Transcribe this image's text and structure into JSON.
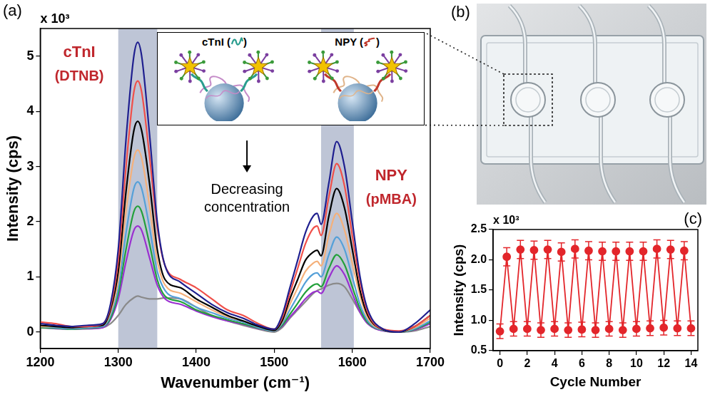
{
  "photo": {
    "panel": "(b)"
  },
  "chart_data": [
    {
      "panel": "(a)",
      "type": "line",
      "marker": "none",
      "line_style": "solid",
      "grid": false,
      "x": [
        1200,
        1220,
        1240,
        1260,
        1280,
        1290,
        1300,
        1310,
        1320,
        1325,
        1330,
        1340,
        1350,
        1360,
        1380,
        1400,
        1420,
        1440,
        1460,
        1480,
        1500,
        1510,
        1520,
        1530,
        1540,
        1550,
        1555,
        1560,
        1570,
        1580,
        1590,
        1600,
        1610,
        1620,
        1640,
        1660,
        1680,
        1700
      ],
      "series": [
        {
          "color": "#1f1f8f",
          "values": [
            0.15,
            0.12,
            0.1,
            0.12,
            0.15,
            0.5,
            1.5,
            3.5,
            5.0,
            5.25,
            5.0,
            3.6,
            2.0,
            1.2,
            0.9,
            0.7,
            0.5,
            0.35,
            0.25,
            0.12,
            0.05,
            0.3,
            0.8,
            1.3,
            1.8,
            2.1,
            2.15,
            1.95,
            2.7,
            3.45,
            3.0,
            2.0,
            1.0,
            0.4,
            0.05,
            0.0,
            0.15,
            0.4
          ]
        },
        {
          "color": "#f0504a",
          "values": [
            0.18,
            0.15,
            0.1,
            0.1,
            0.15,
            0.45,
            1.3,
            3.0,
            4.35,
            4.55,
            4.35,
            3.2,
            1.9,
            1.2,
            0.95,
            0.8,
            0.6,
            0.4,
            0.3,
            0.15,
            0.05,
            0.25,
            0.7,
            1.15,
            1.6,
            1.88,
            1.92,
            1.75,
            2.45,
            3.05,
            2.65,
            1.75,
            0.9,
            0.35,
            0.05,
            0.02,
            0.1,
            0.3
          ]
        },
        {
          "color": "#000000",
          "values": [
            0.12,
            0.1,
            0.08,
            0.1,
            0.12,
            0.4,
            1.1,
            2.55,
            3.65,
            3.82,
            3.65,
            2.7,
            1.5,
            0.95,
            0.8,
            0.6,
            0.45,
            0.3,
            0.2,
            0.1,
            0.03,
            0.2,
            0.6,
            0.95,
            1.3,
            1.45,
            1.48,
            1.38,
            2.1,
            2.6,
            2.25,
            1.5,
            0.75,
            0.3,
            0.04,
            0.0,
            0.1,
            0.3
          ]
        },
        {
          "color": "#f5b07a",
          "values": [
            0.1,
            0.1,
            0.08,
            0.1,
            0.12,
            0.35,
            0.95,
            2.2,
            3.15,
            3.3,
            3.15,
            2.3,
            1.3,
            0.85,
            0.7,
            0.55,
            0.4,
            0.28,
            0.2,
            0.1,
            0.03,
            0.18,
            0.5,
            0.8,
            1.1,
            1.25,
            1.28,
            1.2,
            1.75,
            2.15,
            1.85,
            1.25,
            0.65,
            0.25,
            0.04,
            0.0,
            0.08,
            0.25
          ]
        },
        {
          "color": "#55a0d8",
          "values": [
            0.1,
            0.08,
            0.06,
            0.08,
            0.1,
            0.3,
            0.8,
            1.8,
            2.6,
            2.72,
            2.6,
            1.9,
            1.1,
            0.75,
            0.6,
            0.45,
            0.35,
            0.25,
            0.18,
            0.08,
            0.02,
            0.15,
            0.4,
            0.65,
            0.9,
            1.05,
            1.07,
            1.0,
            1.4,
            1.72,
            1.5,
            1.0,
            0.5,
            0.2,
            0.03,
            0.0,
            0.06,
            0.2
          ]
        },
        {
          "color": "#22a03a",
          "values": [
            0.08,
            0.07,
            0.05,
            0.07,
            0.1,
            0.25,
            0.7,
            1.5,
            2.18,
            2.28,
            2.18,
            1.6,
            0.95,
            0.65,
            0.55,
            0.4,
            0.3,
            0.22,
            0.15,
            0.07,
            0.02,
            0.12,
            0.32,
            0.52,
            0.72,
            0.85,
            0.87,
            0.82,
            1.15,
            1.4,
            1.22,
            0.82,
            0.42,
            0.17,
            0.03,
            0.0,
            0.05,
            0.18
          ]
        },
        {
          "color": "#9a2fd0",
          "values": [
            0.08,
            0.06,
            0.05,
            0.06,
            0.08,
            0.22,
            0.6,
            1.28,
            1.84,
            1.92,
            1.84,
            1.35,
            0.85,
            0.6,
            0.5,
            0.38,
            0.28,
            0.2,
            0.14,
            0.06,
            0.02,
            0.1,
            0.27,
            0.43,
            0.6,
            0.72,
            0.74,
            0.7,
            0.98,
            1.2,
            1.04,
            0.7,
            0.36,
            0.15,
            0.02,
            0.0,
            0.04,
            0.15
          ]
        },
        {
          "color": "#8a8a8a",
          "values": [
            0.1,
            0.08,
            0.06,
            0.06,
            0.08,
            0.15,
            0.3,
            0.5,
            0.62,
            0.65,
            0.63,
            0.6,
            0.6,
            0.62,
            0.6,
            0.45,
            0.3,
            0.2,
            0.12,
            0.05,
            0.0,
            0.08,
            0.25,
            0.4,
            0.55,
            0.7,
            0.75,
            0.78,
            0.85,
            0.88,
            0.82,
            0.6,
            0.35,
            0.15,
            0.02,
            0.0,
            0.02,
            0.1
          ]
        }
      ],
      "xlim": [
        1200,
        1700
      ],
      "xticks": [
        1200,
        1300,
        1400,
        1500,
        1600,
        1700
      ],
      "ylim": [
        -0.3,
        5.5
      ],
      "yticks": [
        0,
        1,
        2,
        3,
        4,
        5
      ],
      "x_label": "Wavenumber (cm⁻¹)",
      "y_label": "Intensity (cps)",
      "axis_multiplier": "x 10³",
      "peak_labels": [
        {
          "text": "cTnI",
          "subtext": "(DTNB)",
          "color": "#c0272d",
          "range": [
            1300,
            1350
          ]
        },
        {
          "text": "NPY",
          "subtext": "(pMBA)",
          "color": "#c0272d",
          "range": [
            1560,
            1602
          ]
        }
      ],
      "arrow_label": "Decreasing concentration",
      "inset_labels": [
        {
          "before": "cTnI (",
          "after": ")"
        },
        {
          "before": "NPY (",
          "after": ")"
        }
      ]
    },
    {
      "panel": "(c)",
      "type": "line",
      "marker": "circle",
      "line_style": "solid",
      "grid": false,
      "color": "#e3262b",
      "x": [
        0,
        0.5,
        1,
        1.5,
        2,
        2.5,
        3,
        3.5,
        4,
        4.5,
        5,
        5.5,
        6,
        6.5,
        7,
        7.5,
        8,
        8.5,
        9,
        9.5,
        10,
        10.5,
        11,
        11.5,
        12,
        12.5,
        13,
        13.5,
        14
      ],
      "values": [
        0.82,
        2.05,
        0.86,
        2.17,
        0.86,
        2.16,
        0.84,
        2.17,
        0.86,
        2.13,
        0.84,
        2.18,
        0.85,
        2.15,
        0.84,
        2.14,
        0.86,
        2.14,
        0.84,
        2.14,
        0.86,
        2.14,
        0.87,
        2.18,
        0.88,
        2.17,
        0.87,
        2.15,
        0.87
      ],
      "errors": [
        0.12,
        0.15,
        0.12,
        0.15,
        0.12,
        0.15,
        0.12,
        0.15,
        0.12,
        0.15,
        0.12,
        0.15,
        0.12,
        0.15,
        0.12,
        0.15,
        0.12,
        0.15,
        0.12,
        0.15,
        0.12,
        0.15,
        0.12,
        0.15,
        0.12,
        0.15,
        0.12,
        0.15,
        0.12
      ],
      "xlim": [
        -0.5,
        14.5
      ],
      "xticks": [
        0,
        2,
        4,
        6,
        8,
        10,
        12,
        14
      ],
      "ylim": [
        0.5,
        2.5
      ],
      "yticks": [
        0.5,
        {
          "value": 1,
          "label": "1.0"
        },
        1.5,
        {
          "value": 2,
          "label": "2.0"
        },
        2.5
      ],
      "x_label": "Cycle Number",
      "y_label": "Intensity (cps)",
      "axis_multiplier": "x 10³"
    }
  ]
}
